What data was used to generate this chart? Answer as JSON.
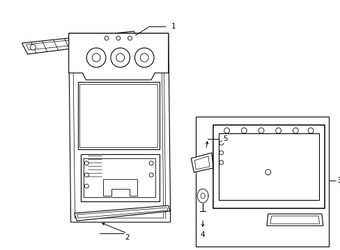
{
  "background_color": "#ffffff",
  "line_color": "#000000",
  "fig_width": 4.89,
  "fig_height": 3.6,
  "dpi": 100,
  "label_fontsize": 7.5,
  "lw": 0.8
}
